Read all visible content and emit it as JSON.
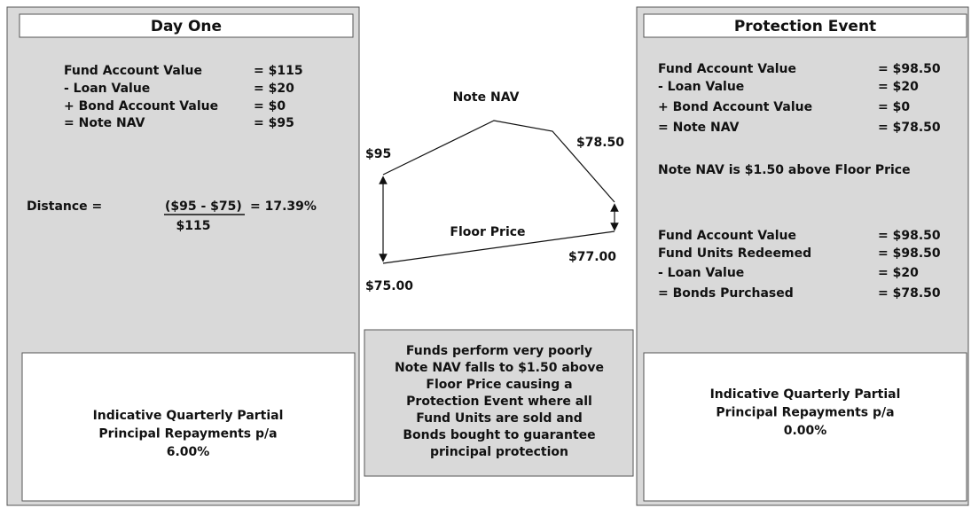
{
  "left_panel": {
    "title": "Day One",
    "rows": [
      {
        "label": "Fund Account Value",
        "value": "= $115"
      },
      {
        "label": "- Loan Value",
        "value": "= $20"
      },
      {
        "label": "+ Bond Account Value",
        "value": "= $0"
      },
      {
        "label": "= Note NAV",
        "value": "= $95"
      }
    ],
    "distance": {
      "prefix": "Distance =",
      "numerator": "($95 - $75)",
      "result": "= 17.39%",
      "denominator": "$115"
    },
    "repayment": [
      "Indicative Quarterly Partial",
      "Principal Repayments p/a",
      "6.00%"
    ]
  },
  "center": {
    "note_nav": "Note NAV",
    "start_nav": "$95",
    "end_nav": "$78.50",
    "floor_price": "Floor Price",
    "end_floor": "$77.00",
    "start_floor": "$75.00",
    "note_lines": [
      "Funds perform very poorly",
      "Note NAV falls to $1.50 above",
      "Floor Price causing a",
      "Protection Event where all",
      "Fund Units are sold and",
      "Bonds bought to guarantee",
      "principal protection"
    ]
  },
  "right_panel": {
    "title": "Protection Event",
    "rows": [
      {
        "label": "Fund Account Value",
        "value": "= $98.50"
      },
      {
        "label": "- Loan Value",
        "value": "= $20"
      },
      {
        "label": "+ Bond Account Value",
        "value": "= $0"
      },
      {
        "label": "= Note NAV",
        "value": "= $78.50"
      }
    ],
    "note": "Note NAV is $1.50 above Floor Price",
    "rows2": [
      {
        "label": "Fund Account Value",
        "value": "= $98.50"
      },
      {
        "label": "Fund Units Redeemed",
        "value": "= $98.50"
      },
      {
        "label": "- Loan Value",
        "value": "= $20"
      },
      {
        "label": "= Bonds Purchased",
        "value": "= $78.50"
      }
    ],
    "repayment": [
      "Indicative Quarterly Partial",
      "Principal Repayments p/a",
      "0.00%"
    ]
  }
}
